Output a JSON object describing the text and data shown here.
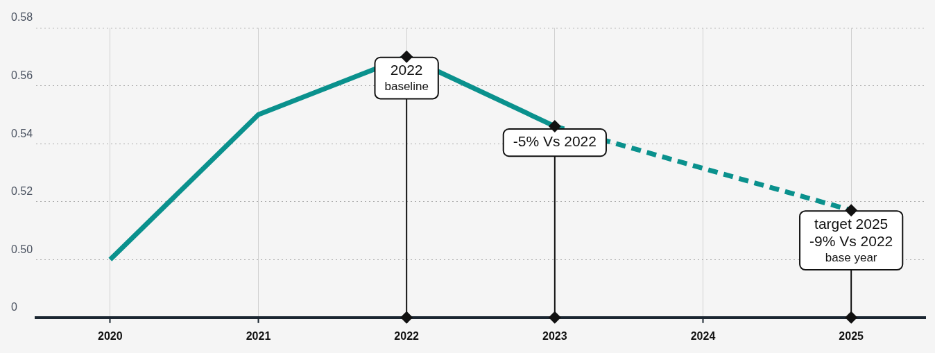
{
  "chart_data": {
    "type": "line",
    "categories": [
      "2020",
      "2021",
      "2022",
      "2023",
      "2024",
      "2025"
    ],
    "series": [
      {
        "color": "#0a918d",
        "values": [
          0.5,
          0.55,
          0.57,
          0.546,
          null,
          null
        ]
      },
      {
        "color": "#0a918d",
        "line_style": "dashed",
        "values": [
          null,
          null,
          null,
          0.546,
          null,
          0.517
        ]
      },
      {
        "type": "lollipop",
        "color": "#111111",
        "marker": "diamond",
        "values": [
          null,
          null,
          0.57,
          0.546,
          null,
          0.517
        ]
      },
      {
        "type": "scatter",
        "color": "#111111",
        "marker": "diamond",
        "values": [
          null,
          null,
          0.48,
          0.48,
          null,
          0.48
        ]
      }
    ],
    "ylim": [
      0.48,
      0.58
    ],
    "yticks": [
      {
        "value": 0.48,
        "label": "0"
      },
      {
        "value": 0.5,
        "label": "0.50"
      },
      0.52,
      0.54,
      0.56,
      0.58
    ],
    "grid": true,
    "marker": "none",
    "line_style": "solid",
    "legend": false,
    "annotations": [
      {
        "text": "2022\nbaseline",
        "x": "2022",
        "y": 0.57
      },
      {
        "text": "-5% Vs 2022",
        "x": "2023",
        "y": 0.546
      },
      {
        "text": "target 2025\n-9% Vs 2022\nbase year",
        "x": "2025",
        "y": 0.517
      }
    ]
  }
}
